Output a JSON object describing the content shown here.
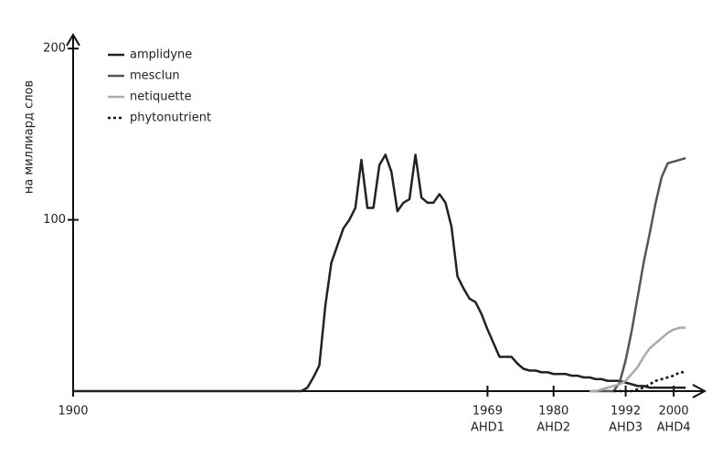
{
  "chart_data": {
    "type": "line",
    "y_label": "на миллиард слов",
    "x": [
      1900,
      1936,
      1937,
      1938,
      1939,
      1940,
      1941,
      1942,
      1943,
      1944,
      1945,
      1946,
      1947,
      1948,
      1949,
      1950,
      1951,
      1952,
      1953,
      1954,
      1955,
      1956,
      1957,
      1958,
      1959,
      1960,
      1961,
      1962,
      1963,
      1964,
      1965,
      1966,
      1967,
      1968,
      1969,
      1970,
      1971,
      1972,
      1973,
      1974,
      1975,
      1976,
      1977,
      1978,
      1979,
      1980,
      1981,
      1982,
      1983,
      1984,
      1985,
      1986,
      1987,
      1988,
      1989,
      1990,
      1991,
      1992,
      1993,
      1994,
      1995,
      1996,
      1997,
      1998,
      1999,
      2000,
      2001,
      2002
    ],
    "series": [
      {
        "name": "amplidyne",
        "color": "#222222",
        "dashed": false,
        "values": [
          0,
          0,
          0,
          0,
          2,
          8,
          15,
          50,
          75,
          85,
          95,
          100,
          107,
          135,
          107,
          107,
          132,
          138,
          128,
          105,
          110,
          112,
          138,
          113,
          110,
          110,
          115,
          110,
          96,
          67,
          60,
          54,
          52,
          45,
          36,
          28,
          20,
          20,
          20,
          16,
          13,
          12,
          12,
          11,
          11,
          10,
          10,
          10,
          9,
          9,
          8,
          8,
          7,
          7,
          6,
          6,
          6,
          5,
          4,
          3,
          3,
          2,
          2,
          2,
          2,
          2,
          2,
          2
        ]
      },
      {
        "name": "mesclun",
        "color": "#555555",
        "dashed": false,
        "values": [
          null,
          null,
          null,
          null,
          null,
          null,
          null,
          null,
          null,
          null,
          null,
          null,
          null,
          null,
          null,
          null,
          null,
          null,
          null,
          null,
          null,
          null,
          null,
          null,
          null,
          null,
          null,
          null,
          null,
          null,
          null,
          null,
          null,
          null,
          null,
          null,
          null,
          null,
          null,
          null,
          null,
          null,
          null,
          null,
          null,
          null,
          null,
          null,
          null,
          null,
          null,
          0,
          0,
          0,
          0,
          0,
          5,
          18,
          35,
          55,
          75,
          92,
          110,
          125,
          133,
          134,
          135,
          136
        ]
      },
      {
        "name": "netiquette",
        "color": "#aaaaaa",
        "dashed": false,
        "values": [
          null,
          null,
          null,
          null,
          null,
          null,
          null,
          null,
          null,
          null,
          null,
          null,
          null,
          null,
          null,
          null,
          null,
          null,
          null,
          null,
          null,
          null,
          null,
          null,
          null,
          null,
          null,
          null,
          null,
          null,
          null,
          null,
          null,
          null,
          null,
          null,
          null,
          null,
          null,
          null,
          null,
          null,
          null,
          null,
          null,
          null,
          null,
          null,
          null,
          null,
          null,
          0,
          0,
          1,
          2,
          3,
          4,
          6,
          10,
          14,
          20,
          25,
          28,
          31,
          34,
          36,
          37,
          37
        ]
      },
      {
        "name": "phytonutrient",
        "color": "#111111",
        "dashed": true,
        "values": [
          null,
          null,
          null,
          null,
          null,
          null,
          null,
          null,
          null,
          null,
          null,
          null,
          null,
          null,
          null,
          null,
          null,
          null,
          null,
          null,
          null,
          null,
          null,
          null,
          null,
          null,
          null,
          null,
          null,
          null,
          null,
          null,
          null,
          null,
          null,
          null,
          null,
          null,
          null,
          null,
          null,
          null,
          null,
          null,
          null,
          null,
          null,
          null,
          null,
          null,
          null,
          null,
          null,
          null,
          null,
          0,
          0,
          0,
          0,
          1,
          2,
          4,
          6,
          7,
          8,
          9,
          11,
          11
        ]
      }
    ],
    "xlim": [
      1900,
      2005
    ],
    "xticks": [
      1900,
      1969,
      1980,
      1992,
      2000
    ],
    "annotations": [
      {
        "x": 1969,
        "text": "AHD1"
      },
      {
        "x": 1980,
        "text": "AHD2"
      },
      {
        "x": 1992,
        "text": "AHD3"
      },
      {
        "x": 2000,
        "text": "AHD4"
      }
    ],
    "ylim": [
      0,
      207
    ],
    "yticks": [
      100,
      200
    ],
    "legend": "top-left",
    "grid": false
  }
}
